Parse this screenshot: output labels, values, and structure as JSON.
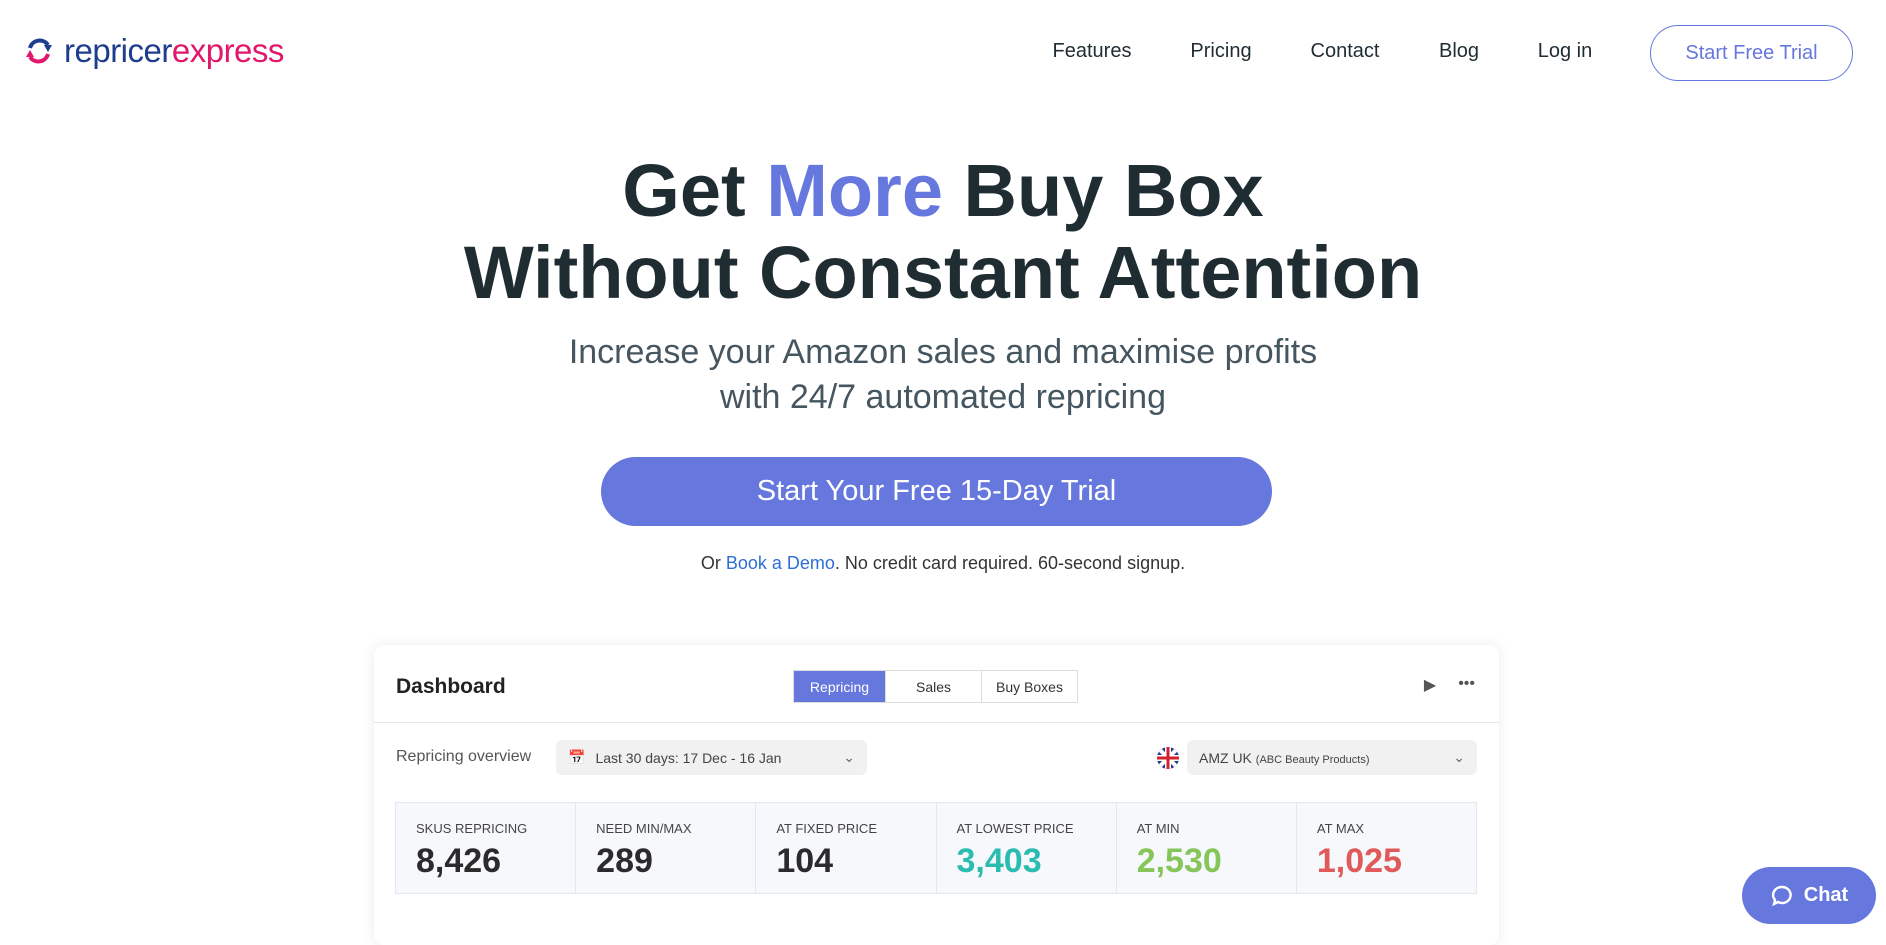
{
  "brand": {
    "part1": "repricer",
    "part2": "express"
  },
  "nav": {
    "items": [
      "Features",
      "Pricing",
      "Contact",
      "Blog",
      "Log in"
    ],
    "cta": "Start Free Trial"
  },
  "hero": {
    "title_1": "Get ",
    "title_highlight": "More",
    "title_2": " Buy Box",
    "title_line2": "Without Constant Attention",
    "subtitle_1": "Increase your Amazon sales and maximise profits",
    "subtitle_2": "with 24/7 automated repricing",
    "cta": "Start Your Free 15-Day Trial",
    "note_pre": "Or ",
    "note_link": "Book a Demo",
    "note_post": ". No credit card required. 60-second signup."
  },
  "dashboard": {
    "title": "Dashboard",
    "tabs": [
      "Repricing",
      "Sales",
      "Buy Boxes"
    ],
    "overview_label": "Repricing overview",
    "date_range": "Last 30 days: 17 Dec - 16 Jan",
    "store": "AMZ UK",
    "store_detail": "(ABC Beauty Products)",
    "stats": [
      {
        "label": "SKUs Repricing",
        "value": "8,426",
        "color": "#2b2b2b"
      },
      {
        "label": "Need Min/Max",
        "value": "289",
        "color": "#2b2b2b"
      },
      {
        "label": "At Fixed Price",
        "value": "104",
        "color": "#2b2b2b"
      },
      {
        "label": "At Lowest Price",
        "value": "3,403",
        "color": "#2bbcb0"
      },
      {
        "label": "At Min",
        "value": "2,530",
        "color": "#86c55a"
      },
      {
        "label": "At Max",
        "value": "1,025",
        "color": "#e05a5a"
      }
    ]
  },
  "chat": {
    "label": "Chat"
  },
  "colors": {
    "accent": "#6677dd",
    "brand_blue": "#1d3d8f",
    "brand_pink": "#e0176b"
  }
}
